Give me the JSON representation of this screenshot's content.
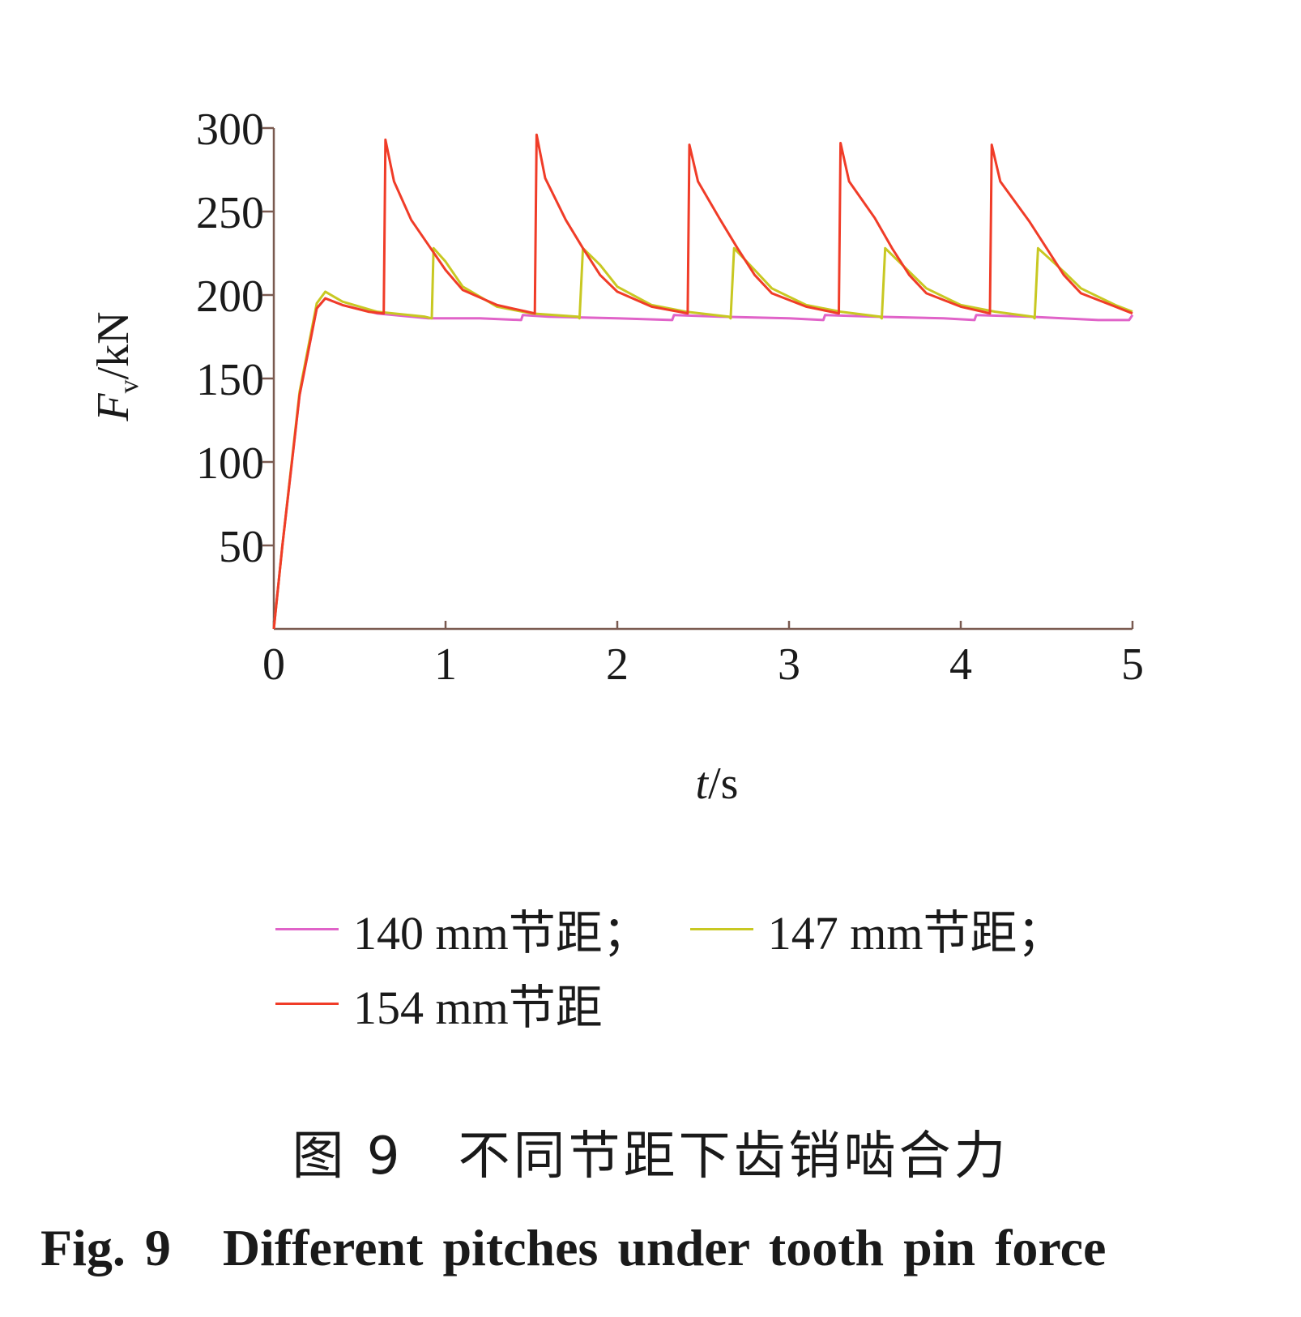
{
  "chart_data": {
    "type": "line",
    "ylabel_main": "F",
    "ylabel_sub": "v",
    "ylabel_unit": "/kN",
    "xlabel_var": "t",
    "xlabel_unit": "/s",
    "xlim": [
      0,
      5
    ],
    "ylim": [
      0,
      300
    ],
    "xticks": [
      "0",
      "1",
      "2",
      "3",
      "4",
      "5"
    ],
    "yticks": [
      "50",
      "100",
      "150",
      "200",
      "250",
      "300"
    ],
    "grid": false,
    "legend_position": "bottom",
    "series": [
      {
        "name": "140 mm节距；",
        "color": "#e063c8",
        "x": [
          0,
          0.05,
          0.15,
          0.25,
          0.3,
          0.4,
          0.6,
          0.9,
          1.2,
          1.44,
          1.45,
          1.6,
          2.0,
          2.32,
          2.33,
          2.6,
          3.0,
          3.2,
          3.21,
          3.5,
          3.9,
          4.08,
          4.09,
          4.4,
          4.8,
          4.98,
          5.0
        ],
        "y": [
          0,
          50,
          140,
          192,
          198,
          194,
          189,
          186,
          186,
          185,
          188,
          187,
          186,
          185,
          188,
          187,
          186,
          185,
          188,
          187,
          186,
          185,
          188,
          187,
          185,
          185,
          188
        ]
      },
      {
        "name": "147 mm节距；",
        "color": "#c8c822",
        "x": [
          0,
          0.05,
          0.15,
          0.25,
          0.3,
          0.4,
          0.6,
          0.88,
          0.92,
          0.93,
          1.0,
          1.1,
          1.3,
          1.5,
          1.77,
          1.78,
          1.8,
          1.9,
          2.0,
          2.2,
          2.4,
          2.65,
          2.66,
          2.68,
          2.8,
          2.9,
          3.1,
          3.3,
          3.53,
          3.54,
          3.56,
          3.7,
          3.8,
          4.0,
          4.2,
          4.42,
          4.43,
          4.45,
          4.6,
          4.7,
          4.9,
          5.0
        ],
        "y": [
          0,
          50,
          142,
          195,
          202,
          196,
          190,
          187,
          186,
          228,
          220,
          205,
          193,
          189,
          187,
          186,
          228,
          218,
          205,
          194,
          190,
          187,
          186,
          228,
          215,
          204,
          194,
          190,
          187,
          186,
          228,
          214,
          204,
          194,
          190,
          187,
          186,
          228,
          214,
          204,
          194,
          190
        ]
      },
      {
        "name": "154 mm节距",
        "color": "#f03c28",
        "x": [
          0,
          0.05,
          0.15,
          0.25,
          0.3,
          0.4,
          0.55,
          0.64,
          0.65,
          0.7,
          0.8,
          0.9,
          1.0,
          1.1,
          1.3,
          1.52,
          1.53,
          1.58,
          1.7,
          1.8,
          1.9,
          2.0,
          2.2,
          2.41,
          2.42,
          2.47,
          2.6,
          2.7,
          2.8,
          2.9,
          3.1,
          3.29,
          3.3,
          3.35,
          3.5,
          3.6,
          3.7,
          3.8,
          4.0,
          4.17,
          4.18,
          4.23,
          4.4,
          4.5,
          4.6,
          4.7,
          4.9,
          5.0
        ],
        "y": [
          0,
          50,
          140,
          192,
          198,
          194,
          190,
          189,
          293,
          268,
          245,
          230,
          215,
          203,
          194,
          189,
          296,
          270,
          245,
          228,
          212,
          202,
          193,
          189,
          290,
          268,
          245,
          228,
          212,
          201,
          193,
          189,
          291,
          268,
          246,
          228,
          212,
          201,
          193,
          189,
          290,
          268,
          244,
          228,
          212,
          201,
          193,
          189
        ]
      }
    ]
  },
  "caption": {
    "zh": "图 9　不同节距下齿销啮合力",
    "en": "Fig. 9　Different pitches under tooth pin force"
  }
}
